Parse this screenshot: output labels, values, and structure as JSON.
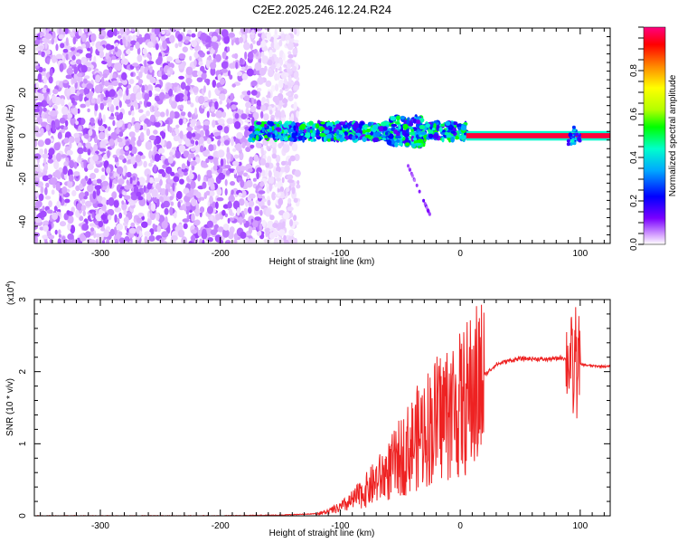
{
  "figure": {
    "title": "C2E2.2025.246.12.24.R24"
  },
  "chart_data": [
    {
      "type": "heatmap",
      "xlabel": "Height of straight line (km)",
      "ylabel": "Frequency (Hz)",
      "xlim": [
        -355,
        125
      ],
      "ylim": [
        -50,
        50
      ],
      "x_ticks": [
        -300,
        -200,
        -100,
        0,
        100
      ],
      "y_ticks": [
        -40,
        -20,
        0,
        20,
        40
      ],
      "colorbar": {
        "label": "Normalized spectral amplitude",
        "ticks": [
          0.0,
          0.2,
          0.4,
          0.6,
          0.8
        ],
        "range": [
          0,
          1
        ],
        "colormap": [
          "#ffffff",
          "#d9a9ff",
          "#7a00ff",
          "#0000ff",
          "#00a8ff",
          "#00ffcc",
          "#00ff00",
          "#b4ff00",
          "#ffff00",
          "#ff8800",
          "#ff0000",
          "#ff0080"
        ]
      },
      "features": {
        "noise_region_x": [
          -355,
          -155
        ],
        "wandering_trace_x": [
          -175,
          5
        ],
        "strong_tone": {
          "x": [
            5,
            125
          ],
          "frequency": 0,
          "amplitude": 0.95
        },
        "side_feature": {
          "x": [
            90,
            100
          ],
          "frequency": 0,
          "amplitude": 0.5
        }
      },
      "grid": false
    },
    {
      "type": "line",
      "xlabel": "Height of straight line (km)",
      "ylabel": "SNR (10 * v/v)",
      "exponent_label": "(x10",
      "exponent_power": "4",
      "exponent_close": ")",
      "xlim": [
        -355,
        125
      ],
      "ylim": [
        0,
        3
      ],
      "x_ticks": [
        -300,
        -200,
        -100,
        0,
        100
      ],
      "y_ticks": [
        0,
        1,
        2,
        3
      ],
      "color": "#ee2222",
      "series": [
        {
          "x": [
            -355,
            -300,
            -250,
            -200,
            -150,
            -120,
            -110,
            -100,
            -90,
            -80,
            -70,
            -60,
            -50,
            -40,
            -30,
            -20,
            -10,
            0,
            10,
            20,
            30,
            40,
            50,
            60,
            70,
            80,
            85,
            90,
            93,
            95,
            96,
            97,
            98,
            100,
            110,
            125
          ],
          "y": [
            0.0,
            0.0,
            0.0,
            0.0,
            0.01,
            0.03,
            0.06,
            0.12,
            0.22,
            0.35,
            0.5,
            0.65,
            0.85,
            1.05,
            1.25,
            1.4,
            1.55,
            1.6,
            1.8,
            1.95,
            2.1,
            2.15,
            2.18,
            2.18,
            2.17,
            2.18,
            2.2,
            2.15,
            2.2,
            1.6,
            2.8,
            1.8,
            2.4,
            2.1,
            2.08,
            2.07
          ]
        }
      ],
      "grid": false
    }
  ]
}
